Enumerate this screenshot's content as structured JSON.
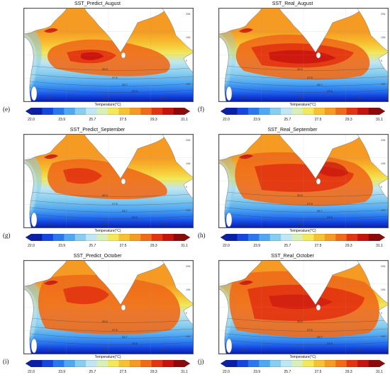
{
  "panels": [
    {
      "id": "e",
      "label": "(e)",
      "title": "SST_Predict_August",
      "variant": "pred-aug"
    },
    {
      "id": "f",
      "label": "(f)",
      "title": "SST_Real_August",
      "variant": "real-aug"
    },
    {
      "id": "g",
      "label": "(g)",
      "title": "SST_Predict_September",
      "variant": "pred-sep"
    },
    {
      "id": "h",
      "label": "(h)",
      "title": "SST_Real_September",
      "variant": "real-sep"
    },
    {
      "id": "i",
      "label": "(i)",
      "title": "SST_Predict_October",
      "variant": "pred-oct"
    },
    {
      "id": "j",
      "label": "(j)",
      "title": "SST_Real_October",
      "variant": "real-oct"
    }
  ],
  "colorbar": {
    "title": "Temperature(°C)",
    "ticks": [
      "22.0",
      "23.9",
      "25.7",
      "27.5",
      "29.3",
      "31.1"
    ],
    "colors": [
      "#0a1fa8",
      "#1546e0",
      "#2a78f0",
      "#4fa8f2",
      "#86cdf0",
      "#bfe6f2",
      "#d9efb8",
      "#f2e85a",
      "#f7c232",
      "#f59a22",
      "#f06a18",
      "#e23412",
      "#c8120e",
      "#8c0a0a"
    ]
  },
  "map_labels": {
    "lat": [
      "20N",
      "10N",
      "0",
      "10S"
    ],
    "lon": [
      "60E",
      "80E",
      "100E"
    ],
    "contours": [
      "29.3",
      "27.5",
      "25.7",
      "23.9"
    ]
  }
}
